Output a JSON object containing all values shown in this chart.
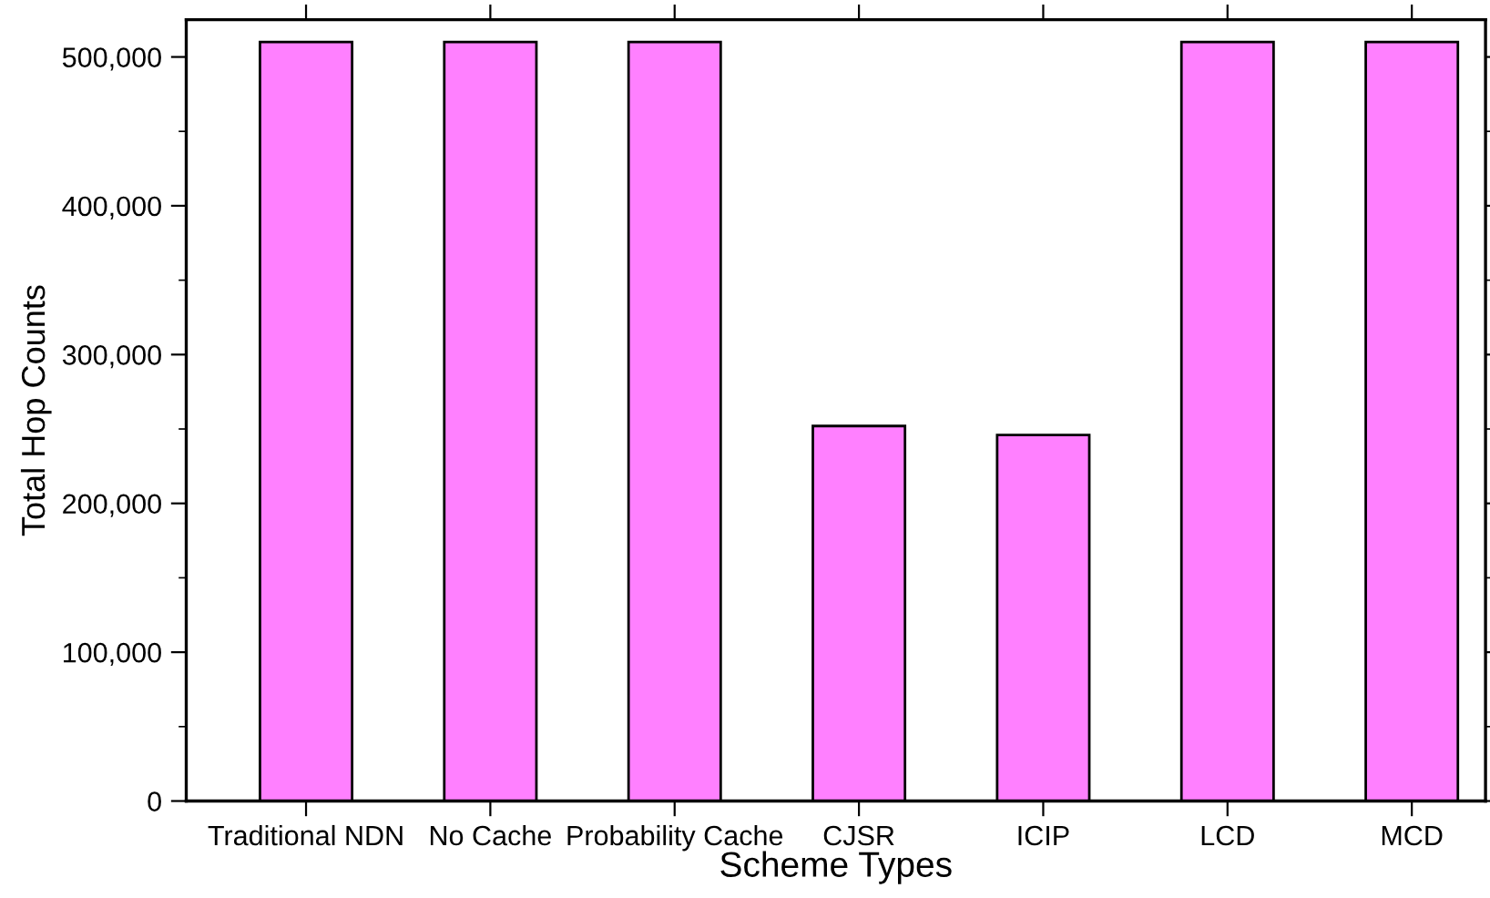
{
  "chart_data": {
    "type": "bar",
    "xlabel": "Scheme Types",
    "ylabel": "Total Hop Counts",
    "categories": [
      "Traditional NDN",
      "No Cache",
      "Probability Cache",
      "CJSR",
      "ICIP",
      "LCD",
      "MCD"
    ],
    "values": [
      510000,
      510000,
      510000,
      252000,
      246000,
      510000,
      510000
    ],
    "color": "#ff80ff",
    "ylim": [
      0,
      525000
    ],
    "yticks": [
      {
        "value": 0,
        "label": "0"
      },
      {
        "value": 100000,
        "label": "100,000"
      },
      {
        "value": 200000,
        "label": "200,000"
      },
      {
        "value": 300000,
        "label": "300,000"
      },
      {
        "value": 400000,
        "label": "400,000"
      },
      {
        "value": 500000,
        "label": "500,000"
      }
    ],
    "grid": false
  }
}
